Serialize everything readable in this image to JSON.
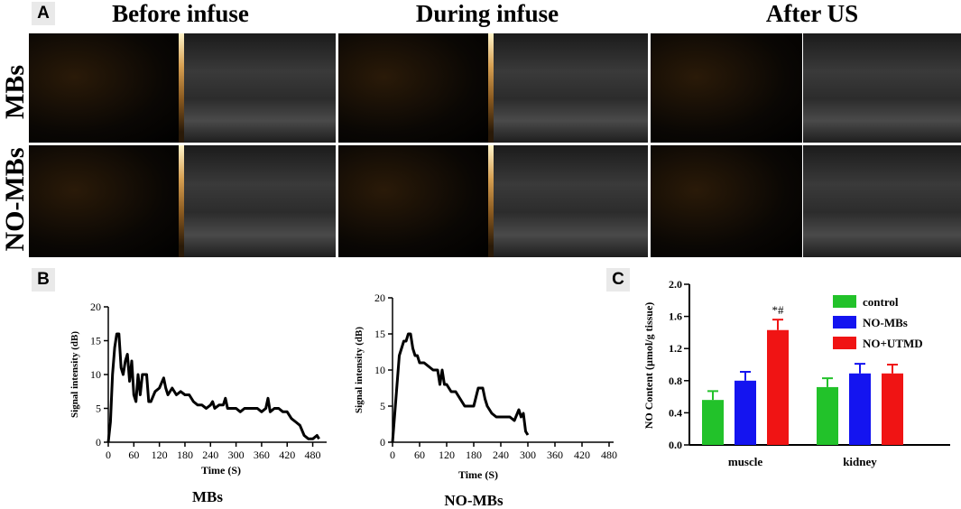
{
  "panel_a": {
    "letter": "A",
    "column_titles": [
      "Before infuse",
      "During infuse",
      "After US"
    ],
    "row_labels": [
      "MBs",
      "NO-MBs"
    ]
  },
  "panel_b": {
    "letter": "B"
  },
  "panel_c": {
    "letter": "C"
  },
  "chart_data": [
    {
      "type": "line",
      "title": "MBs",
      "xlabel": "Time (S)",
      "ylabel": "Signal intensity (dB)",
      "xlim": [
        0,
        500
      ],
      "ylim": [
        0,
        20
      ],
      "xticks": [
        "0",
        "60",
        "120",
        "180",
        "240",
        "300",
        "360",
        "420",
        "480"
      ],
      "yticks": [
        "0",
        "5",
        "10",
        "15",
        "20"
      ],
      "x": [
        0,
        5,
        10,
        15,
        20,
        25,
        30,
        35,
        40,
        45,
        50,
        55,
        60,
        65,
        70,
        75,
        80,
        85,
        90,
        95,
        100,
        110,
        120,
        130,
        135,
        140,
        150,
        160,
        170,
        180,
        190,
        200,
        210,
        220,
        230,
        240,
        245,
        250,
        260,
        270,
        275,
        280,
        290,
        300,
        310,
        320,
        330,
        340,
        350,
        360,
        370,
        375,
        380,
        390,
        400,
        410,
        420,
        430,
        440,
        450,
        460,
        470,
        480,
        490,
        495
      ],
      "y": [
        0,
        3,
        10,
        14,
        16,
        16,
        11,
        10,
        12,
        13,
        9,
        12,
        7,
        6,
        10,
        7,
        10,
        10,
        10,
        6,
        6,
        7.5,
        8,
        9.5,
        8,
        7,
        8,
        7,
        7.5,
        7,
        7,
        6,
        5.5,
        5.5,
        5,
        5.5,
        6,
        5,
        5.5,
        5.5,
        6.5,
        5,
        5,
        5,
        4.5,
        5,
        5,
        5,
        5,
        4.5,
        5,
        6.5,
        4.5,
        5,
        5,
        4.5,
        4.5,
        3.5,
        3,
        2.5,
        1,
        0.5,
        0.5,
        1,
        0.5
      ]
    },
    {
      "type": "line",
      "title": "NO-MBs",
      "xlabel": "Time (S)",
      "ylabel": "Signal intensity (dB)",
      "xlim": [
        0,
        480
      ],
      "ylim": [
        0,
        20
      ],
      "xticks": [
        "0",
        "60",
        "120",
        "180",
        "240",
        "300",
        "360",
        "420",
        "480"
      ],
      "yticks": [
        "0",
        "5",
        "10",
        "15",
        "20"
      ],
      "x": [
        0,
        5,
        10,
        15,
        20,
        25,
        30,
        35,
        40,
        45,
        50,
        55,
        60,
        70,
        80,
        90,
        100,
        105,
        110,
        115,
        120,
        130,
        140,
        150,
        160,
        170,
        180,
        190,
        195,
        200,
        205,
        210,
        220,
        230,
        240,
        250,
        260,
        270,
        280,
        285,
        290,
        295,
        300
      ],
      "y": [
        0,
        4,
        8,
        12,
        13,
        14,
        14,
        15,
        15,
        13,
        12,
        12,
        11,
        11,
        10.5,
        10,
        10,
        8,
        10,
        8,
        8,
        7,
        7,
        6,
        5,
        5,
        5,
        7.5,
        7.5,
        7.5,
        6,
        5,
        4,
        3.5,
        3.5,
        3.5,
        3.5,
        3,
        4.5,
        3.5,
        4,
        1.5,
        1
      ]
    },
    {
      "type": "bar",
      "categories": [
        "muscle",
        "kidney"
      ],
      "ylabel": "NO Content (µmol/g tissue)",
      "ylim": [
        0,
        2.0
      ],
      "yticks": [
        "0.0",
        "0.4",
        "0.8",
        "1.2",
        "1.6",
        "2.0"
      ],
      "series": [
        {
          "name": "control",
          "color": "#22c22a",
          "values": [
            0.56,
            0.72
          ],
          "errors": [
            0.11,
            0.11
          ]
        },
        {
          "name": "NO-MBs",
          "color": "#1414f0",
          "values": [
            0.8,
            0.89
          ],
          "errors": [
            0.11,
            0.12
          ]
        },
        {
          "name": "NO+UTMD",
          "color": "#f01414",
          "values": [
            1.43,
            0.89
          ],
          "errors": [
            0.13,
            0.11
          ]
        }
      ],
      "annotations": [
        {
          "text": "*#",
          "category": "muscle",
          "series": "NO+UTMD"
        }
      ]
    }
  ]
}
